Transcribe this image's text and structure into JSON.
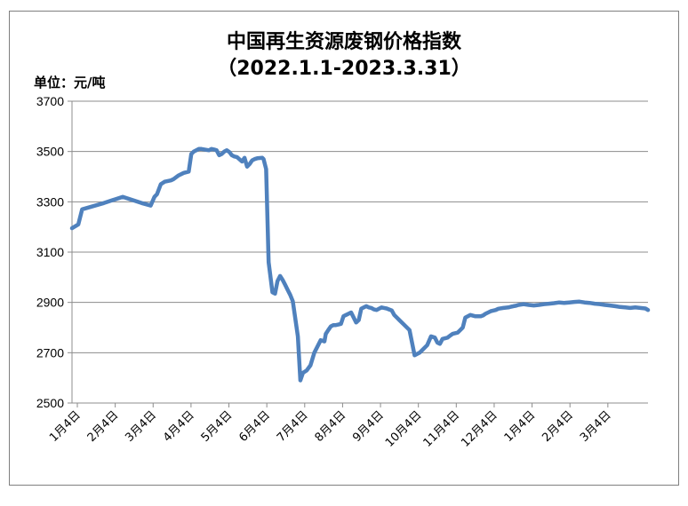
{
  "chart_data": {
    "type": "line",
    "title": "中国再生资源废钢价格指数",
    "subtitle": "（2022.1.1-2023.3.31）",
    "unit_label": "单位：元/吨",
    "ylim": [
      2500,
      3700
    ],
    "yticks": [
      2500,
      2700,
      2900,
      3100,
      3300,
      3500,
      3700
    ],
    "grid": true,
    "legend": "none",
    "line_color": "#4f81bd",
    "x_tick_labels": [
      "1月4日",
      "2月4日",
      "3月4日",
      "4月4日",
      "5月4日",
      "6月4日",
      "7月4日",
      "8月4日",
      "9月4日",
      "10月4日",
      "11月4日",
      "12月4日",
      "1月4日",
      "2月4日",
      "3月4日"
    ],
    "series": [
      {
        "x": [
          0,
          5,
          8,
          25,
          40,
          55,
          62,
          65,
          67,
          70,
          73,
          78,
          80,
          84,
          88,
          92,
          94,
          96,
          100,
          102,
          108,
          110,
          112,
          114,
          116,
          118,
          120,
          122,
          124,
          126,
          128,
          130,
          134,
          136,
          138,
          140,
          142,
          144,
          146,
          150,
          151,
          153,
          155,
          158,
          160,
          162,
          164,
          166,
          168,
          170,
          172,
          174,
          178,
          180,
          182,
          185,
          188,
          191,
          196,
          199,
          200,
          202,
          204,
          206,
          208,
          210,
          212,
          214,
          216,
          218,
          220,
          224,
          226,
          228,
          230,
          232,
          234,
          236,
          238,
          240,
          242,
          244,
          246,
          248,
          250,
          252,
          254,
          256,
          258,
          262,
          266,
          270,
          274,
          276,
          280,
          283,
          286,
          288,
          290,
          292,
          296,
          298,
          300,
          304,
          308,
          310,
          314,
          318,
          320,
          322,
          324,
          326,
          328,
          330,
          334,
          336,
          340,
          344,
          346,
          348,
          350,
          352,
          356,
          360,
          364,
          368,
          372,
          376,
          380,
          384,
          388,
          392,
          396,
          400,
          404,
          408,
          412,
          416,
          420,
          424,
          428,
          432,
          436,
          440,
          444,
          448,
          452,
          454
        ],
        "y": [
          3195,
          3210,
          3270,
          3295,
          3320,
          3295,
          3285,
          3320,
          3330,
          3370,
          3380,
          3385,
          3390,
          3405,
          3415,
          3420,
          3490,
          3500,
          3510,
          3510,
          3505,
          3510,
          3508,
          3505,
          3485,
          3490,
          3500,
          3505,
          3498,
          3485,
          3480,
          3478,
          3460,
          3475,
          3440,
          3450,
          3465,
          3470,
          3473,
          3475,
          3470,
          3430,
          3060,
          2940,
          2935,
          2985,
          3005,
          2990,
          2970,
          2950,
          2930,
          2905,
          2765,
          2590,
          2620,
          2630,
          2650,
          2700,
          2750,
          2745,
          2775,
          2790,
          2805,
          2810,
          2810,
          2812,
          2815,
          2845,
          2850,
          2855,
          2860,
          2820,
          2830,
          2875,
          2880,
          2885,
          2880,
          2878,
          2872,
          2870,
          2875,
          2880,
          2878,
          2876,
          2872,
          2868,
          2850,
          2840,
          2830,
          2810,
          2790,
          2690,
          2700,
          2710,
          2730,
          2765,
          2760,
          2740,
          2735,
          2755,
          2760,
          2768,
          2775,
          2780,
          2800,
          2840,
          2850,
          2845,
          2845,
          2845,
          2848,
          2855,
          2860,
          2865,
          2870,
          2875,
          2878,
          2880,
          2883,
          2885,
          2887,
          2890,
          2893,
          2890,
          2888,
          2890,
          2893,
          2895,
          2897,
          2900,
          2898,
          2900,
          2902,
          2903,
          2900,
          2898,
          2895,
          2893,
          2890,
          2888,
          2885,
          2882,
          2880,
          2878,
          2880,
          2878,
          2876,
          2870
        ]
      }
    ]
  }
}
